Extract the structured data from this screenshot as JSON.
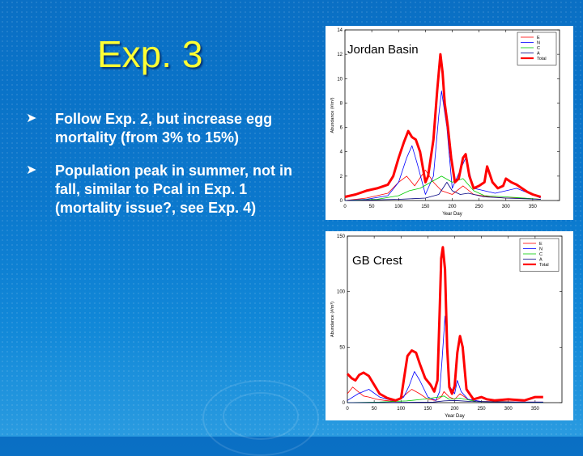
{
  "slide": {
    "title": "Exp. 3",
    "bullets": [
      "Follow Exp. 2, but increase egg mortality (from 3% to 15%)",
      "Population peak in summer, not in fall, similar to Pcal in Exp. 1 (mortality issue?, see Exp. 4)"
    ],
    "bullet_icon": "arrow-bullet-icon"
  },
  "chart_data": [
    {
      "type": "line",
      "title": "Jordan Basin",
      "xlabel": "Year Day",
      "ylabel": "Abundance (#/m³)",
      "xlim": [
        0,
        400
      ],
      "ylim": [
        0,
        14
      ],
      "xticks": [
        0,
        50,
        100,
        150,
        200,
        250,
        300,
        350
      ],
      "yticks": [
        0,
        2,
        4,
        6,
        8,
        10,
        12,
        14
      ],
      "legend": "top-right",
      "series": [
        {
          "name": "E",
          "color": "#ff0000",
          "width": 0.8,
          "x": [
            0,
            40,
            80,
            100,
            115,
            130,
            150,
            165,
            180,
            200,
            220,
            240,
            270,
            300,
            330,
            365
          ],
          "y": [
            0,
            0.2,
            0.6,
            1.5,
            2.0,
            1.2,
            2.5,
            1.5,
            0.8,
            0.5,
            1.2,
            0.5,
            0.3,
            0.2,
            0.2,
            0.1
          ]
        },
        {
          "name": "N",
          "color": "#0000ff",
          "width": 0.8,
          "x": [
            0,
            40,
            80,
            100,
            115,
            125,
            135,
            150,
            165,
            175,
            180,
            190,
            200,
            215,
            225,
            240,
            280,
            320,
            365
          ],
          "y": [
            0,
            0.1,
            0.4,
            1.5,
            3.5,
            4.5,
            3.0,
            0.5,
            2.0,
            7.0,
            9.0,
            6.0,
            1.0,
            2.5,
            3.5,
            1.0,
            0.6,
            1.0,
            0.2
          ]
        },
        {
          "name": "C",
          "color": "#00cc00",
          "width": 0.8,
          "x": [
            0,
            60,
            100,
            120,
            140,
            160,
            180,
            200,
            220,
            240,
            260,
            300,
            365
          ],
          "y": [
            0,
            0.1,
            0.4,
            0.8,
            1.0,
            1.5,
            2.0,
            1.5,
            1.8,
            0.8,
            0.4,
            0.3,
            0.1
          ]
        },
        {
          "name": "A",
          "color": "#000080",
          "width": 0.8,
          "x": [
            0,
            100,
            150,
            175,
            190,
            200,
            215,
            230,
            260,
            300,
            365
          ],
          "y": [
            0,
            0.1,
            0.2,
            0.5,
            1.5,
            0.8,
            0.5,
            0.6,
            0.3,
            0.2,
            0.1
          ]
        },
        {
          "name": "Total",
          "color": "#ff0000",
          "width": 3,
          "x": [
            0,
            20,
            40,
            60,
            80,
            90,
            100,
            110,
            118,
            125,
            132,
            140,
            150,
            155,
            165,
            172,
            178,
            182,
            186,
            192,
            198,
            205,
            212,
            220,
            225,
            232,
            240,
            250,
            260,
            265,
            275,
            285,
            295,
            300,
            310,
            320,
            330,
            340,
            350,
            365
          ],
          "y": [
            0.3,
            0.5,
            0.8,
            1.0,
            1.3,
            2.0,
            3.5,
            4.8,
            5.7,
            5.2,
            5.0,
            4.0,
            1.5,
            2.0,
            5.0,
            9.0,
            12.0,
            10.5,
            8.0,
            6.0,
            3.5,
            1.5,
            1.8,
            3.5,
            3.8,
            2.0,
            1.0,
            1.2,
            1.5,
            2.8,
            1.5,
            1.0,
            1.2,
            1.8,
            1.5,
            1.3,
            1.0,
            0.7,
            0.5,
            0.3
          ]
        }
      ]
    },
    {
      "type": "line",
      "title": "GB Crest",
      "xlabel": "Year Day",
      "ylabel": "Abundance (#/m³)",
      "xlim": [
        0,
        400
      ],
      "ylim": [
        0,
        150
      ],
      "xticks": [
        0,
        50,
        100,
        150,
        200,
        250,
        300,
        350
      ],
      "yticks": [
        0,
        50,
        100,
        150
      ],
      "legend": "top-right",
      "series": [
        {
          "name": "E",
          "color": "#ff0000",
          "width": 0.8,
          "x": [
            0,
            10,
            20,
            30,
            40,
            55,
            70,
            90,
            105,
            120,
            135,
            150,
            165,
            175,
            180,
            190,
            200,
            210,
            225,
            250,
            290,
            330,
            365
          ],
          "y": [
            8,
            14,
            10,
            6,
            5,
            3,
            2,
            1,
            6,
            12,
            8,
            3,
            2,
            5,
            10,
            5,
            3,
            8,
            3,
            1,
            1,
            0.5,
            0.5
          ]
        },
        {
          "name": "N",
          "color": "#0000ff",
          "width": 0.8,
          "x": [
            0,
            20,
            40,
            60,
            90,
            105,
            115,
            125,
            135,
            150,
            165,
            172,
            176,
            182,
            190,
            200,
            205,
            212,
            225,
            250,
            300,
            365
          ],
          "y": [
            2,
            8,
            12,
            5,
            1,
            5,
            15,
            28,
            20,
            5,
            2,
            10,
            35,
            78,
            15,
            8,
            20,
            10,
            3,
            1,
            0.5,
            0.5
          ]
        },
        {
          "name": "C",
          "color": "#00cc00",
          "width": 0.8,
          "x": [
            0,
            60,
            110,
            140,
            170,
            180,
            190,
            210,
            240,
            300,
            365
          ],
          "y": [
            0,
            0.5,
            1.5,
            3,
            5,
            6,
            3,
            4,
            1,
            0.5,
            0.2
          ]
        },
        {
          "name": "A",
          "color": "#000080",
          "width": 0.8,
          "x": [
            0,
            100,
            160,
            180,
            200,
            230,
            300,
            365
          ],
          "y": [
            0,
            0.2,
            0.5,
            1.5,
            2,
            1,
            0.5,
            0.2
          ]
        },
        {
          "name": "Total",
          "color": "#ff0000",
          "width": 3,
          "x": [
            0,
            8,
            15,
            22,
            30,
            40,
            50,
            60,
            75,
            90,
            100,
            105,
            112,
            120,
            128,
            135,
            145,
            155,
            162,
            168,
            172,
            175,
            178,
            182,
            186,
            190,
            195,
            200,
            205,
            210,
            215,
            222,
            235,
            250,
            260,
            275,
            300,
            330,
            350,
            365
          ],
          "y": [
            26,
            22,
            20,
            25,
            27,
            24,
            16,
            8,
            4,
            2,
            4,
            20,
            42,
            47,
            45,
            35,
            22,
            16,
            10,
            20,
            80,
            130,
            140,
            120,
            50,
            14,
            8,
            15,
            45,
            60,
            50,
            12,
            3,
            5,
            3,
            2,
            3,
            2,
            5,
            5
          ]
        }
      ]
    }
  ]
}
